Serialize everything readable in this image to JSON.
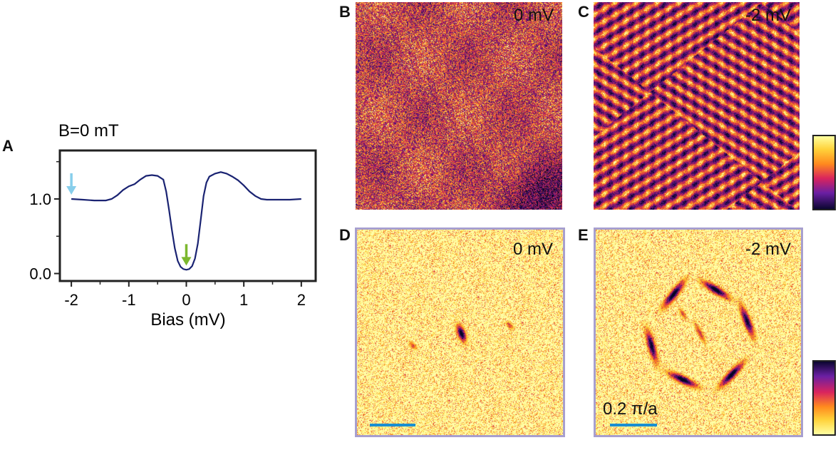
{
  "panels": {
    "a": "A",
    "b": "B",
    "c": "C",
    "d": "D",
    "e": "E"
  },
  "chart_data": {
    "type": "line",
    "title": "B=0 mT",
    "xlabel": "Bias (mV)",
    "ylabel": "",
    "xlim": [
      -2.2,
      2.25
    ],
    "ylim": [
      -0.1,
      1.65
    ],
    "xticks": [
      -2,
      -1,
      0,
      1,
      2
    ],
    "yticks": [
      0.0,
      1.0
    ],
    "ytick_labels": [
      "0.0",
      "1.0"
    ],
    "series": [
      {
        "x": [
          -2.0,
          -1.8,
          -1.6,
          -1.4,
          -1.3,
          -1.2,
          -1.1,
          -1.0,
          -0.9,
          -0.8,
          -0.7,
          -0.6,
          -0.5,
          -0.4,
          -0.35,
          -0.3,
          -0.25,
          -0.2,
          -0.15,
          -0.1,
          -0.05,
          0.0,
          0.05,
          0.1,
          0.15,
          0.2,
          0.25,
          0.3,
          0.35,
          0.4,
          0.5,
          0.6,
          0.7,
          0.8,
          0.9,
          1.0,
          1.1,
          1.2,
          1.3,
          1.4,
          1.6,
          1.8,
          2.0
        ],
        "y": [
          1.0,
          0.99,
          0.98,
          0.98,
          1.0,
          1.05,
          1.12,
          1.17,
          1.2,
          1.26,
          1.31,
          1.32,
          1.31,
          1.26,
          1.1,
          0.85,
          0.58,
          0.34,
          0.17,
          0.09,
          0.06,
          0.05,
          0.06,
          0.1,
          0.2,
          0.4,
          0.72,
          1.04,
          1.22,
          1.3,
          1.34,
          1.36,
          1.34,
          1.3,
          1.25,
          1.18,
          1.1,
          1.04,
          1.0,
          0.99,
          0.99,
          0.99,
          1.0
        ]
      }
    ],
    "annotations": [
      {
        "type": "arrow",
        "x": -2.0,
        "y": 1.0,
        "color": "#87ceeb"
      },
      {
        "type": "arrow",
        "x": 0.0,
        "y": 0.05,
        "color": "#7cb82f"
      }
    ]
  },
  "maps": {
    "b_label": "0 mV",
    "c_label": "-2 mV",
    "d_label": "0 mV",
    "e_label": "-2 mV",
    "scalebar_label": "0.2 π/a"
  },
  "colors": {
    "curve": "#1a2372",
    "green": "#8cbf26",
    "blue": "#87ceeb",
    "frame": "#a79fcf",
    "scalebar": "#1a8fd1"
  }
}
